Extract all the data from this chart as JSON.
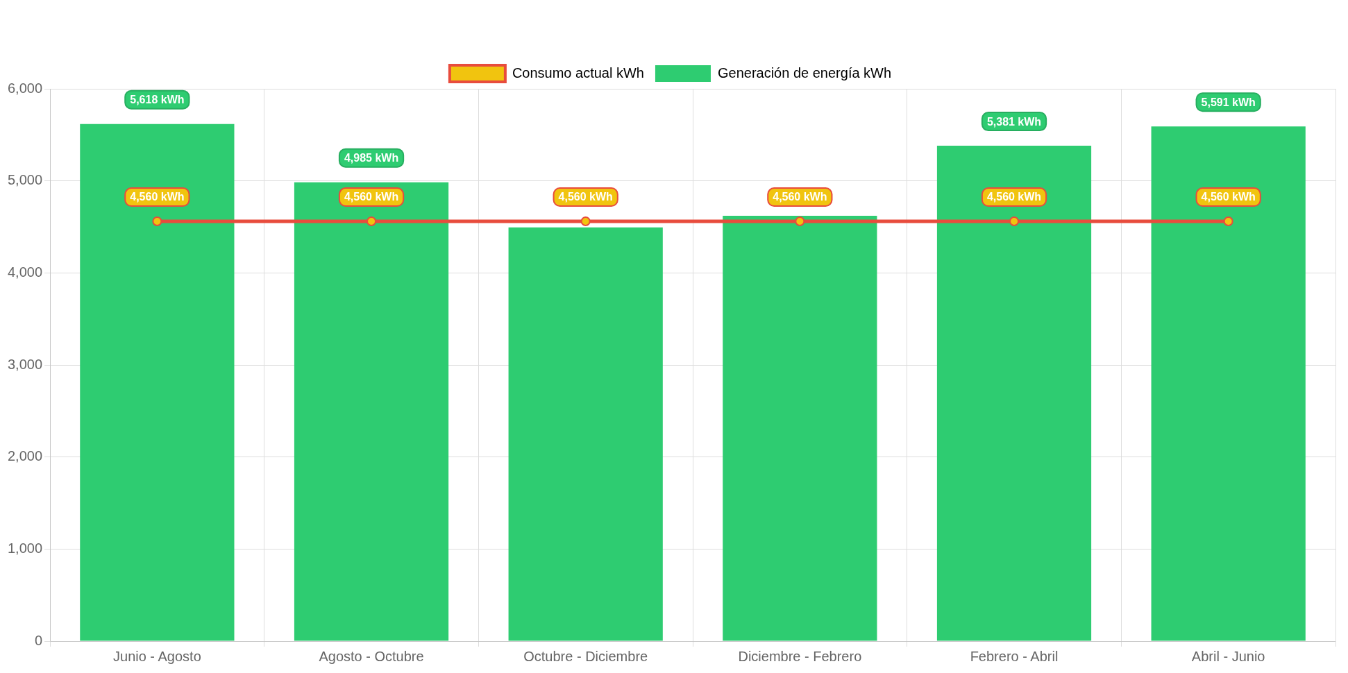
{
  "chart_data": {
    "type": "bar",
    "categories": [
      "Junio - Agosto",
      "Agosto - Octubre",
      "Octubre - Diciembre",
      "Diciembre - Febrero",
      "Febrero - Abril",
      "Abril - Junio"
    ],
    "series": [
      {
        "name": "Consumo actual kWh",
        "type": "line",
        "color": "#e84c3d",
        "values": [
          4560,
          4560,
          4560,
          4560,
          4560,
          4560
        ],
        "value_labels": [
          "4,560 kWh",
          "4,560 kWh",
          "4,560 kWh",
          "4,560 kWh",
          "4,560 kWh",
          "4,560 kWh"
        ]
      },
      {
        "name": "Generación de energía kWh",
        "color": "#2ecc71",
        "values": [
          5618,
          4985,
          4495,
          4620,
          5381,
          5591
        ],
        "value_labels": [
          "5,618 kWh",
          "4,985 kWh",
          null,
          null,
          "5,381 kWh",
          "5,591 kWh"
        ]
      }
    ],
    "ylim": [
      0,
      6000
    ],
    "yticks": [
      0,
      {
        "value": 1000,
        "label": "1,000"
      },
      {
        "value": 2000,
        "label": "2,000"
      },
      {
        "value": 3000,
        "label": "3,000"
      },
      {
        "value": 4000,
        "label": "4,000"
      },
      {
        "value": 5000,
        "label": "5,000"
      },
      {
        "value": 6000,
        "label": "6,000"
      }
    ],
    "grid": true,
    "legend": "top",
    "marker": "circle"
  }
}
